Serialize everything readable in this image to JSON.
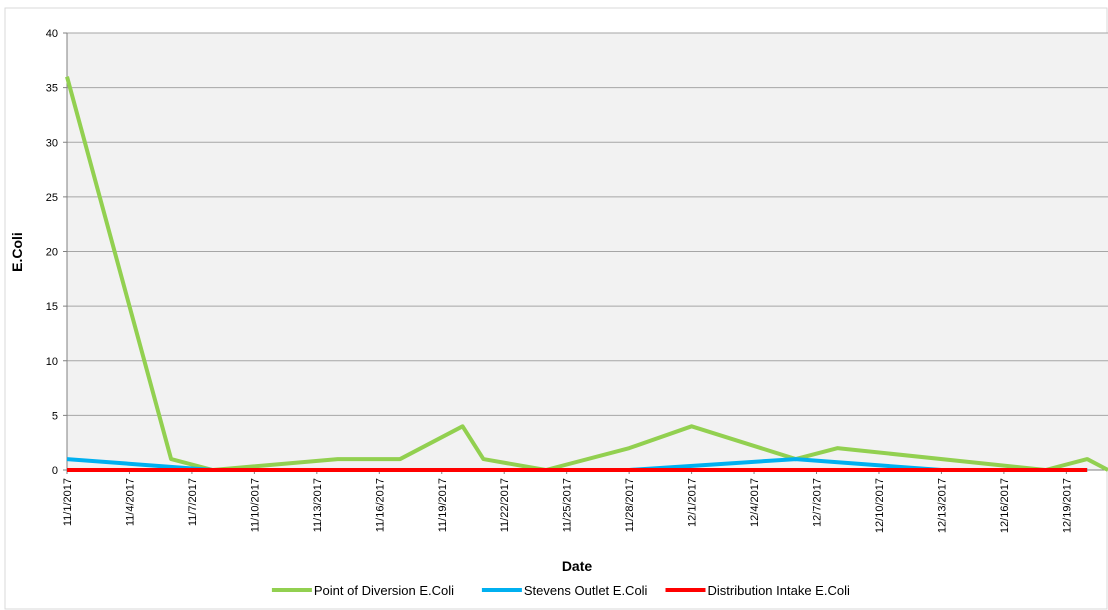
{
  "chart_data": {
    "type": "line",
    "x_label": "Date",
    "y_label": "E.Coli",
    "xlim": [
      "11/1/2017",
      "12/21/2017"
    ],
    "xticks": [
      "11/1/2017",
      "11/4/2017",
      "11/7/2017",
      "11/10/2017",
      "11/13/2017",
      "11/16/2017",
      "11/19/2017",
      "11/22/2017",
      "11/25/2017",
      "11/28/2017",
      "12/1/2017",
      "12/4/2017",
      "12/7/2017",
      "12/10/2017",
      "12/13/2017",
      "12/16/2017",
      "12/19/2017"
    ],
    "ylim": [
      0,
      40
    ],
    "yticks": [
      0,
      5,
      10,
      15,
      20,
      25,
      30,
      35,
      40
    ],
    "grid": true,
    "legend": "bottom",
    "series": [
      {
        "name": "Point of Diversion E.Coli",
        "color": "#92d050",
        "x": [
          "11/1/2017",
          "11/6/2017",
          "11/8/2017",
          "11/14/2017",
          "11/17/2017",
          "11/20/2017",
          "11/21/2017",
          "11/24/2017",
          "11/28/2017",
          "12/1/2017",
          "12/6/2017",
          "12/8/2017",
          "12/18/2017",
          "12/20/2017",
          "12/21/2017"
        ],
        "values": [
          36,
          1,
          0,
          1,
          1,
          4,
          1,
          0,
          2,
          4,
          1,
          2,
          0,
          1,
          0
        ]
      },
      {
        "name": "Stevens Outlet E.Coli",
        "color": "#00b0f0",
        "x": [
          "11/1/2017",
          "11/8/2017",
          "11/28/2017",
          "12/6/2017",
          "12/13/2017",
          "12/20/2017"
        ],
        "values": [
          1,
          0,
          0,
          1,
          0,
          0
        ]
      },
      {
        "name": "Distribution Intake E.Coli",
        "color": "#ff0000",
        "x": [
          "11/1/2017",
          "12/20/2017"
        ],
        "values": [
          0,
          0
        ]
      }
    ]
  }
}
